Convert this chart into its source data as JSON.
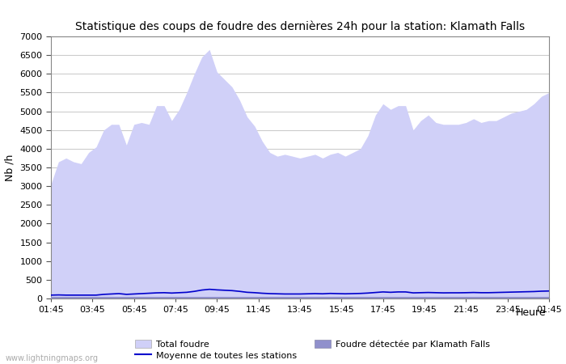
{
  "title": "Statistique des coups de foudre des dernières 24h pour la station: Klamath Falls",
  "ylabel": "Nb /h",
  "xlabel": "Heure",
  "watermark": "www.lightningmaps.org",
  "ylim": [
    0,
    7000
  ],
  "yticks": [
    0,
    500,
    1000,
    1500,
    2000,
    2500,
    3000,
    3500,
    4000,
    4500,
    5000,
    5500,
    6000,
    6500,
    7000
  ],
  "xtick_labels": [
    "01:45",
    "03:45",
    "05:45",
    "07:45",
    "09:45",
    "11:45",
    "13:45",
    "15:45",
    "17:45",
    "19:45",
    "21:45",
    "23:45",
    "01:45"
  ],
  "total_foudre_color": "#d0d0f8",
  "klamath_color": "#9090cc",
  "moyenne_color": "#0000cc",
  "bg_color": "#ffffff",
  "grid_color": "#cccccc",
  "total_foudre": [
    3050,
    3650,
    3750,
    3650,
    3600,
    3900,
    4050,
    4500,
    4650,
    4650,
    4100,
    4650,
    4700,
    4650,
    5150,
    5150,
    4750,
    5050,
    5500,
    6000,
    6450,
    6650,
    6050,
    5850,
    5650,
    5300,
    4850,
    4600,
    4200,
    3900,
    3800,
    3850,
    3800,
    3750,
    3800,
    3850,
    3750,
    3850,
    3900,
    3800,
    3900,
    4000,
    4350,
    4900,
    5200,
    5050,
    5150,
    5150,
    4500,
    4750,
    4900,
    4700,
    4650,
    4650,
    4650,
    4700,
    4800,
    4700,
    4750,
    4750,
    4850,
    4950,
    5000,
    5050,
    5200,
    5400,
    5500
  ],
  "klamath_foudre": [
    50,
    50,
    50,
    50,
    50,
    50,
    50,
    50,
    50,
    50,
    50,
    50,
    50,
    50,
    50,
    50,
    50,
    50,
    50,
    50,
    50,
    50,
    50,
    50,
    50,
    50,
    50,
    50,
    50,
    50,
    50,
    50,
    50,
    50,
    50,
    50,
    50,
    50,
    50,
    50,
    50,
    50,
    50,
    50,
    50,
    50,
    50,
    50,
    50,
    50,
    50,
    50,
    50,
    50,
    50,
    50,
    50,
    50,
    50,
    50,
    50,
    50,
    50,
    50,
    50,
    50,
    50
  ],
  "moyenne": [
    90,
    95,
    90,
    90,
    90,
    90,
    90,
    110,
    120,
    130,
    110,
    120,
    130,
    140,
    150,
    155,
    145,
    155,
    165,
    190,
    225,
    245,
    230,
    220,
    210,
    190,
    165,
    155,
    140,
    130,
    125,
    120,
    120,
    120,
    125,
    130,
    125,
    135,
    130,
    125,
    130,
    135,
    145,
    160,
    175,
    165,
    175,
    175,
    150,
    155,
    160,
    155,
    150,
    152,
    152,
    155,
    160,
    155,
    155,
    160,
    165,
    170,
    175,
    180,
    185,
    195,
    200
  ]
}
